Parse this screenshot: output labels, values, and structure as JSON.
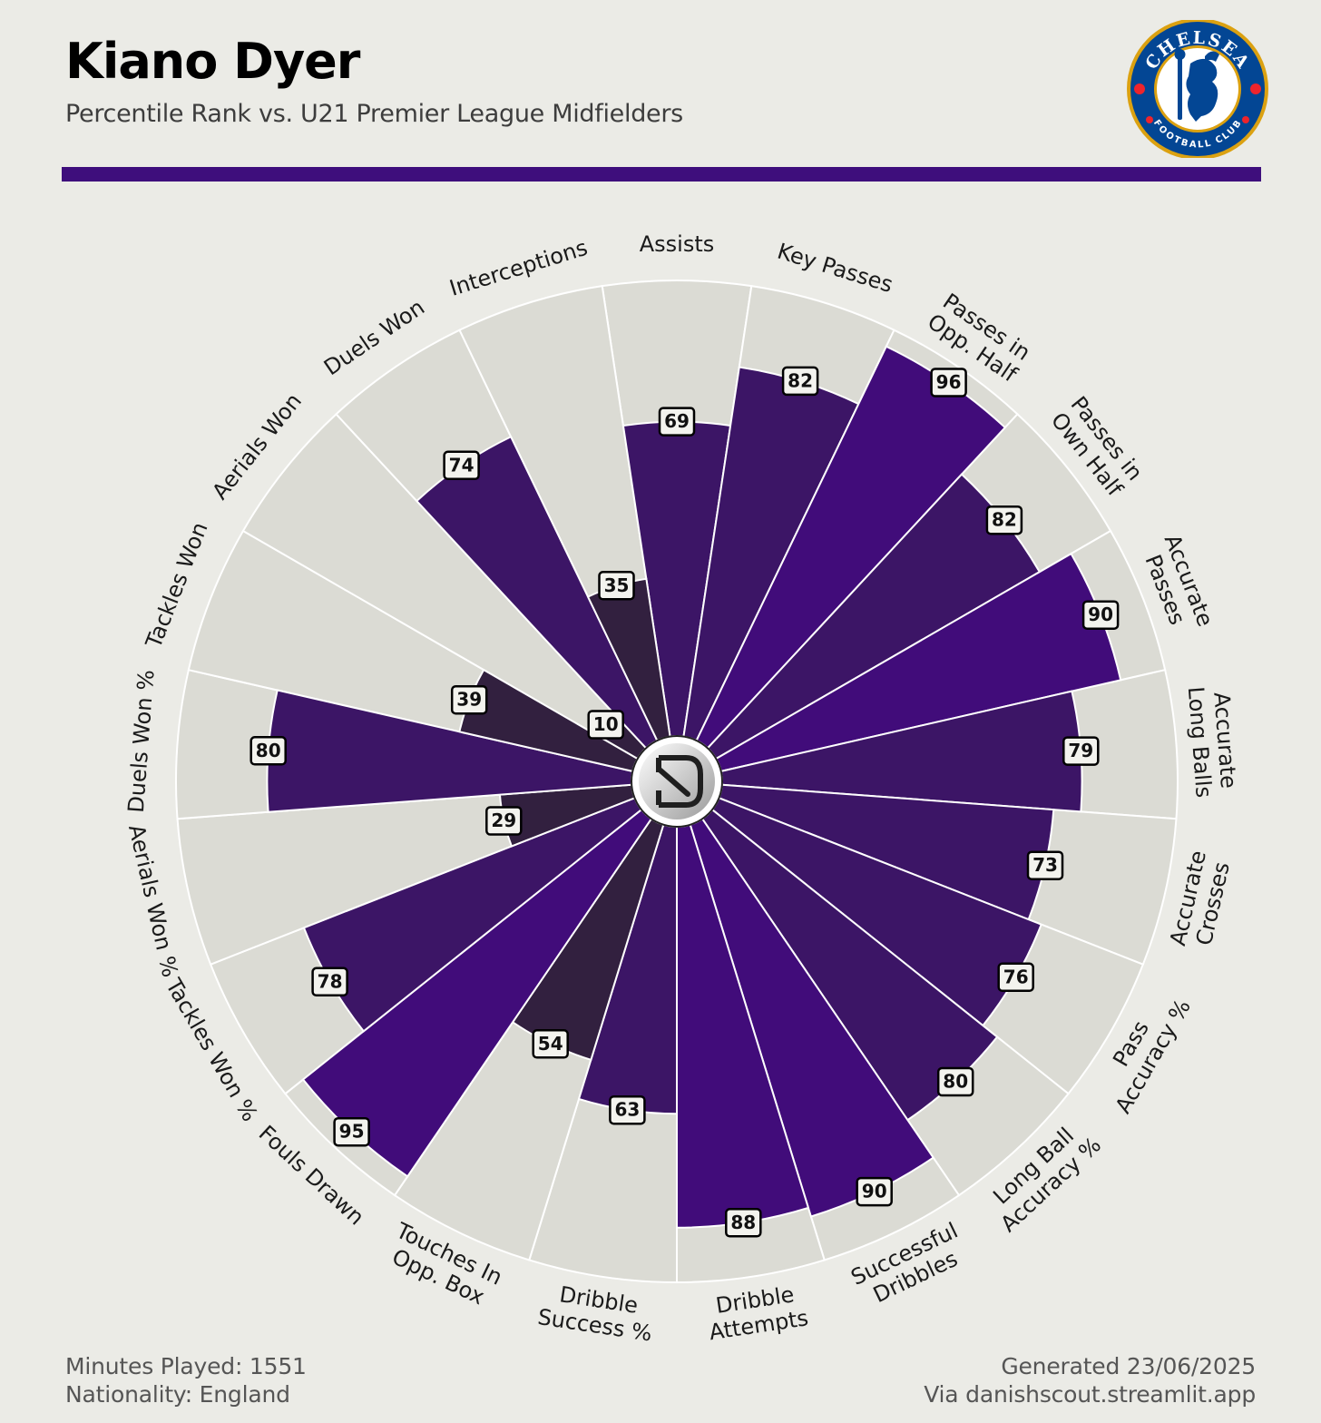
{
  "header": {
    "title": "Kiano Dyer",
    "subtitle": "Percentile Rank vs. U21 Premier League Midfielders"
  },
  "badge": {
    "top_text": "CHELSEA",
    "bottom_text": "FOOTBALL CLUB",
    "colors": {
      "blue": "#034694",
      "gold": "#DBA111",
      "red": "#EE242C"
    }
  },
  "footer": {
    "minutes": "Minutes Played: 1551",
    "nationality": "Nationality: England",
    "generated": "Generated 23/06/2025",
    "via": "Via danishscout.streamlit.app"
  },
  "colors": {
    "background": "#EBEBE6",
    "segment_bg": "#DBDBD4",
    "accent": "#3E0E7C",
    "bar_high": "#410C7A",
    "bar_mid": "#3C1566",
    "bar_low": "#32203F"
  },
  "chart_data": {
    "type": "polar-bar",
    "title": "Kiano Dyer",
    "subtitle": "Percentile Rank vs. U21 Premier League Midfielders",
    "rlim": [
      0,
      100
    ],
    "categories": [
      "Assists",
      "Key Passes",
      "Passes in\nOpp. Half",
      "Passes in\nOwn Half",
      "Accurate\nPasses",
      "Accurate\nLong Balls",
      "Accurate\nCrosses",
      "Pass\nAccuracy %",
      "Long Ball\nAccuracy %",
      "Successful\nDribbles",
      "Dribble\nAttempts",
      "Dribble\nSuccess %",
      "Touches In\nOpp. Box",
      "Fouls Drawn",
      "Tackles Won %",
      "Aerials Won %",
      "Duels Won %",
      "Tackles Won",
      "Aerials Won",
      "Duels Won",
      "Interceptions"
    ],
    "values": [
      69,
      82,
      96,
      82,
      90,
      79,
      73,
      76,
      80,
      90,
      88,
      63,
      54,
      95,
      78,
      29,
      80,
      39,
      10,
      74,
      35
    ]
  }
}
